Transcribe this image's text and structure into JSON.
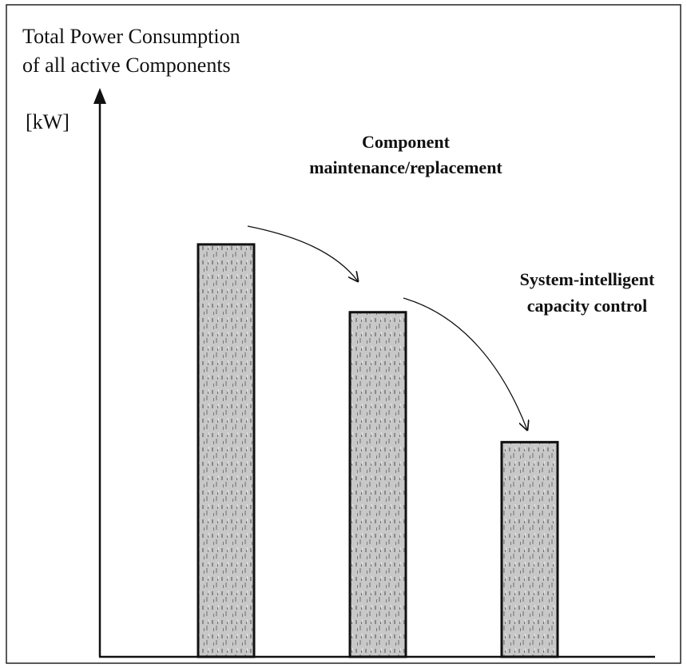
{
  "chart_data": {
    "type": "bar",
    "title": [
      "Total Power Consumption",
      "of all active Components"
    ],
    "ylabel": "[kW]",
    "categories": [
      null,
      null,
      null
    ],
    "values": [
      73,
      61,
      38
    ],
    "color": "#c4c4c4",
    "ylim": [
      0,
      100
    ],
    "yticks": [],
    "grid": false,
    "annotations": [
      [
        "Component",
        "maintenance/replacement"
      ],
      [
        "System-intelligent",
        "capacity control"
      ]
    ]
  }
}
